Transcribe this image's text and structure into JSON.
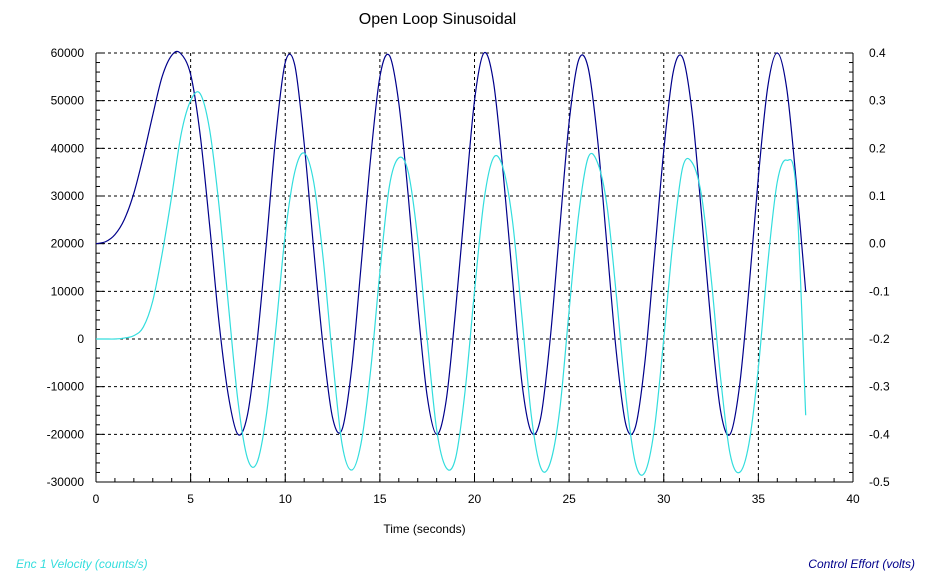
{
  "chart_data": {
    "type": "line",
    "title": "Open Loop Sinusoidal",
    "xlabel": "Time (seconds)",
    "ylabel": "",
    "y2label": "",
    "xlim": [
      0,
      40
    ],
    "ylim": [
      -30000,
      60000
    ],
    "y2lim": [
      -0.5,
      0.4
    ],
    "xticks": [
      0,
      5,
      10,
      15,
      20,
      25,
      30,
      35,
      40
    ],
    "yticks": [
      60000,
      50000,
      40000,
      30000,
      20000,
      10000,
      0,
      -10000,
      -20000,
      -30000
    ],
    "y2ticks": [
      "0.4",
      "0.3",
      "0.2",
      "0.1",
      "0.0",
      "-0.1",
      "-0.2",
      "-0.3",
      "-0.4",
      "-0.5"
    ],
    "grid": true,
    "legend": [
      {
        "text": "Enc 1 Velocity (counts/s)",
        "position": "bottom-left",
        "color": "#33dddd"
      },
      {
        "text": "Control Effort (volts)",
        "position": "bottom-right",
        "color": "#00008b"
      }
    ],
    "series": [
      {
        "name": "Control Effort (volts)",
        "axis": "right",
        "color": "#00008b",
        "x": [
          0.0,
          0.5,
          1.0,
          1.5,
          2.0,
          2.5,
          3.0,
          3.5,
          4.0,
          4.45,
          5.0,
          5.5,
          6.0,
          6.5,
          7.0,
          7.5,
          8.0,
          8.5,
          9.0,
          9.5,
          10.0,
          10.5,
          11.0,
          11.5,
          12.0,
          12.5,
          13.0,
          13.5,
          14.0,
          14.5,
          15.0,
          15.5,
          16.0,
          16.5,
          17.0,
          17.5,
          18.0,
          18.5,
          19.0,
          19.5,
          20.0,
          20.5,
          21.0,
          21.5,
          22.0,
          22.5,
          23.0,
          23.5,
          24.0,
          24.5,
          25.0,
          25.5,
          26.0,
          26.5,
          27.0,
          27.5,
          28.0,
          28.5,
          29.0,
          29.5,
          30.0,
          30.5,
          31.0,
          31.5,
          32.0,
          32.5,
          33.0,
          33.5,
          34.0,
          34.5,
          35.0,
          35.5,
          36.0,
          36.5,
          37.0,
          37.5
        ],
        "values": [
          0.0,
          0.004,
          0.019,
          0.051,
          0.106,
          0.183,
          0.27,
          0.351,
          0.395,
          0.4,
          0.355,
          0.23,
          0.04,
          -0.165,
          -0.32,
          -0.4,
          -0.36,
          -0.21,
          0.0,
          0.225,
          0.38,
          0.375,
          0.21,
          -0.01,
          -0.215,
          -0.365,
          -0.39,
          -0.265,
          -0.05,
          0.175,
          0.35,
          0.395,
          0.295,
          0.1,
          -0.13,
          -0.32,
          -0.4,
          -0.33,
          -0.14,
          0.085,
          0.3,
          0.4,
          0.34,
          0.155,
          -0.07,
          -0.29,
          -0.395,
          -0.365,
          -0.2,
          0.03,
          0.255,
          0.385,
          0.37,
          0.22,
          -0.005,
          -0.23,
          -0.38,
          -0.385,
          -0.25,
          -0.03,
          0.195,
          0.36,
          0.39,
          0.275,
          0.06,
          -0.17,
          -0.35,
          -0.4,
          -0.3,
          -0.095,
          0.14,
          0.33,
          0.4,
          0.325,
          0.13,
          -0.1
        ]
      },
      {
        "name": "Enc 1 Velocity (counts/s)",
        "axis": "left",
        "color": "#33dddd",
        "x": [
          0.0,
          0.5,
          1.0,
          1.5,
          2.0,
          2.5,
          3.0,
          3.5,
          4.0,
          4.5,
          5.0,
          5.5,
          6.0,
          6.5,
          7.0,
          7.5,
          8.0,
          8.5,
          9.0,
          9.5,
          10.0,
          10.5,
          11.0,
          11.5,
          12.0,
          12.5,
          13.0,
          13.5,
          14.0,
          14.5,
          15.0,
          15.5,
          16.0,
          16.5,
          17.0,
          17.5,
          18.0,
          18.5,
          19.0,
          19.5,
          20.0,
          20.5,
          21.0,
          21.5,
          22.0,
          22.5,
          23.0,
          23.5,
          24.0,
          24.5,
          25.0,
          25.5,
          26.0,
          26.5,
          27.0,
          27.5,
          28.0,
          28.5,
          29.0,
          29.5,
          30.0,
          30.5,
          31.0,
          31.5,
          32.0,
          32.5,
          33.0,
          33.5,
          34.0,
          34.5,
          35.0,
          35.5,
          36.0,
          36.5,
          37.0,
          37.5
        ],
        "values": [
          0,
          0,
          0,
          200,
          700,
          2500,
          8000,
          18000,
          30000,
          43000,
          50000,
          51500,
          44000,
          28000,
          7000,
          -13000,
          -25000,
          -26000,
          -16000,
          2000,
          22000,
          35000,
          39000,
          33000,
          17000,
          -4000,
          -22000,
          -27500,
          -22000,
          -7000,
          14000,
          32000,
          38000,
          35000,
          21000,
          0,
          -19000,
          -27000,
          -25000,
          -11000,
          10000,
          29000,
          38000,
          36000,
          25000,
          5000,
          -16000,
          -27000,
          -26000,
          -15000,
          6000,
          26000,
          38000,
          37000,
          28000,
          9000,
          -12000,
          -26000,
          -28000,
          -19000,
          0,
          21000,
          36000,
          37000,
          30000,
          13000,
          -8000,
          -24000,
          -28000,
          -22000,
          -6000,
          16000,
          33000,
          37500,
          31000,
          -16000
        ]
      }
    ]
  }
}
